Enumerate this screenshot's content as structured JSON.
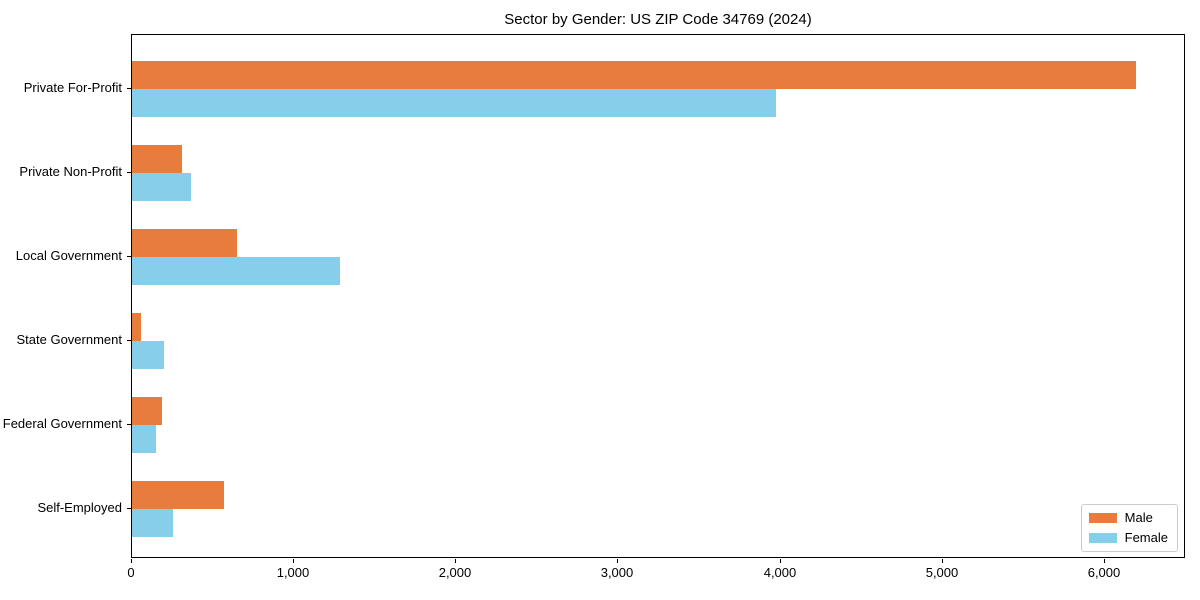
{
  "chart_data": {
    "type": "bar",
    "orientation": "horizontal",
    "title": "Sector by Gender: US ZIP Code 34769 (2024)",
    "categories": [
      "Private For-Profit",
      "Private Non-Profit",
      "Local Government",
      "State Government",
      "Federal Government",
      "Self-Employed"
    ],
    "series": [
      {
        "name": "Male",
        "color": "#e87c3c",
        "values": [
          6190,
          310,
          650,
          55,
          185,
          565
        ]
      },
      {
        "name": "Female",
        "color": "#87ceeb",
        "values": [
          3970,
          365,
          1285,
          200,
          150,
          250
        ]
      }
    ],
    "xlabel": "",
    "ylabel": "",
    "x_ticks": [
      "0",
      "1,000",
      "2,000",
      "3,000",
      "4,000",
      "5,000",
      "6,000"
    ],
    "x_tick_values": [
      0,
      1000,
      2000,
      3000,
      4000,
      5000,
      6000
    ],
    "xlim": [
      0,
      6500
    ],
    "grid": false,
    "legend_position": "lower right",
    "background_color": "#ffffff",
    "axis_color": "#000000"
  }
}
